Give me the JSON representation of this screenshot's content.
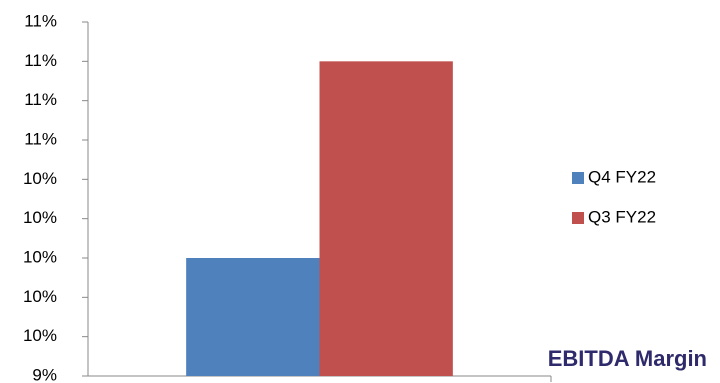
{
  "chart_data": {
    "type": "bar",
    "title": "EBITDA Margin",
    "categories": [
      null
    ],
    "series": [
      {
        "name": "Q4 FY22",
        "color": "#4f81bd",
        "values": [
          10.0
        ]
      },
      {
        "name": "Q3 FY22",
        "color": "#c0504d",
        "values": [
          11.0
        ]
      }
    ],
    "ylim": [
      9.4,
      11.2
    ],
    "yticks": [
      {
        "value": 9.4,
        "label": "9%"
      },
      {
        "value": 9.6,
        "label": "10%"
      },
      {
        "value": 9.8,
        "label": "10%"
      },
      {
        "value": 10.0,
        "label": "10%"
      },
      {
        "value": 10.2,
        "label": "10%"
      },
      {
        "value": 10.4,
        "label": "10%"
      },
      {
        "value": 10.6,
        "label": "11%"
      },
      {
        "value": 10.8,
        "label": "11%"
      },
      {
        "value": 11.0,
        "label": "11%"
      },
      {
        "value": 11.2,
        "label": "11%"
      }
    ],
    "grid": false,
    "legend": "right"
  }
}
